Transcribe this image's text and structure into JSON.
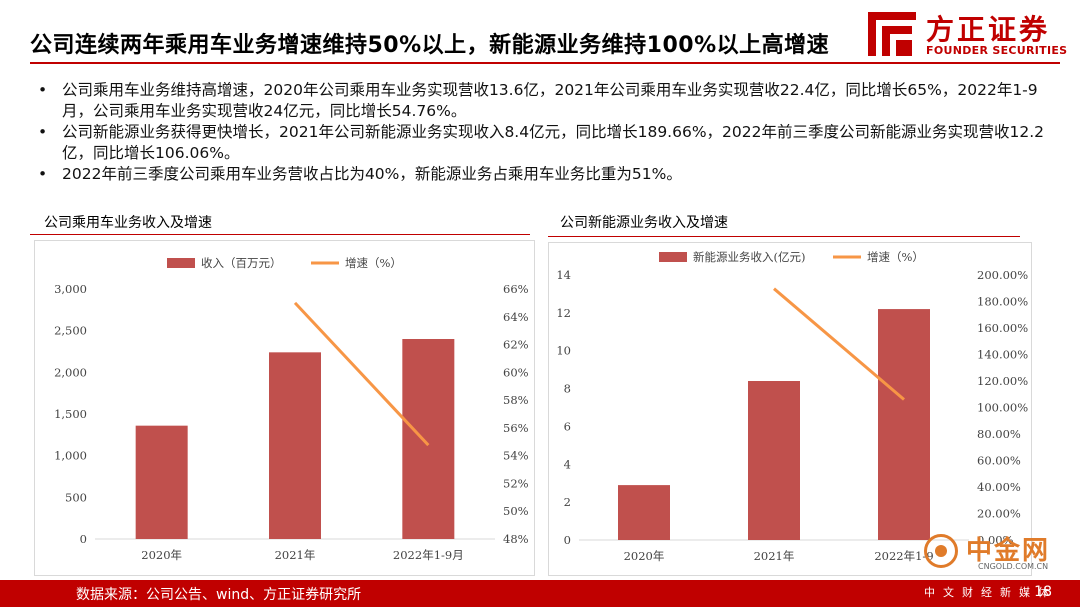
{
  "header": {
    "title": "公司连续两年乘用车业务增速维持50%以上，新能源业务维持100%以上高增速",
    "logo_cn": "方正证券",
    "logo_en": "FOUNDER SECURITIES"
  },
  "bullets": [
    "公司乘用车业务维持高增速，2020年公司乘用车业务实现营收13.6亿，2021年公司乘用车业务实现营收22.4亿，同比增长65%，2022年1-9月，公司乘用车业务实现营收24亿元，同比增长54.76%。",
    "公司新能源业务获得更快增长，2021年公司新能源业务实现收入8.4亿元，同比增长189.66%，2022年前三季度公司新能源业务实现营收12.2亿，同比增长106.06%。",
    "2022年前三季度公司乘用车业务营收占比为40%，新能源业务占乘用车业务比重为51%。"
  ],
  "chart_data": [
    {
      "type": "bar",
      "title": "公司乘用车业务收入及增速",
      "categories": [
        "2020年",
        "2021年",
        "2022年1-9月"
      ],
      "series": [
        {
          "name": "收入（百万元）",
          "type": "bar",
          "axis": "left",
          "values": [
            1360,
            2240,
            2400
          ]
        },
        {
          "name": "增速（%）",
          "type": "line",
          "axis": "right",
          "values": [
            null,
            65,
            54.76
          ]
        }
      ],
      "ylim_left": [
        0,
        3000
      ],
      "yticks_left": [
        "0",
        "500",
        "1,000",
        "1,500",
        "2,000",
        "2,500",
        "3,000"
      ],
      "ylim_right": [
        48,
        66
      ],
      "yticks_right": [
        "48%",
        "50%",
        "52%",
        "54%",
        "56%",
        "58%",
        "60%",
        "62%",
        "64%",
        "66%"
      ],
      "legend": "top"
    },
    {
      "type": "bar",
      "title": "公司新能源业务收入及增速",
      "categories": [
        "2020年",
        "2021年",
        "2022年1-9"
      ],
      "series": [
        {
          "name": "新能源业务收入(亿元)",
          "type": "bar",
          "axis": "left",
          "values": [
            2.9,
            8.4,
            12.2
          ]
        },
        {
          "name": "增速（%）",
          "type": "line",
          "axis": "right",
          "values": [
            null,
            189.66,
            106.06
          ]
        }
      ],
      "ylim_left": [
        0,
        14
      ],
      "yticks_left": [
        "0",
        "2",
        "4",
        "6",
        "8",
        "10",
        "12",
        "14"
      ],
      "ylim_right": [
        0,
        200
      ],
      "yticks_right": [
        "0.00%",
        "20.00%",
        "40.00%",
        "60.00%",
        "80.00%",
        "100.00%",
        "120.00%",
        "140.00%",
        "160.00%",
        "180.00%",
        "200.00%"
      ],
      "legend": "top"
    }
  ],
  "colors": {
    "bar": "#c0504d",
    "line": "#f79646",
    "accent": "#c00000"
  },
  "footer": {
    "source": "数据来源：公司公告、wind、方正证券研究所",
    "page": "18"
  },
  "watermark": {
    "cn": "中金网",
    "domain": "CNGOLD.COM.CN",
    "slogan": "中文财经新媒体"
  }
}
